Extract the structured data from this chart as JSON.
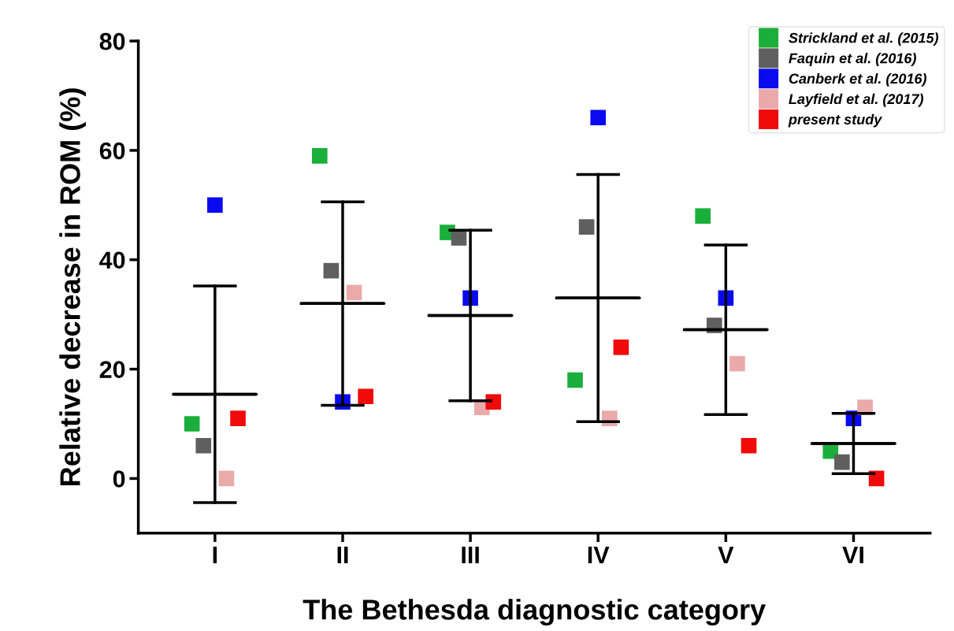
{
  "chart_data": {
    "type": "scatter",
    "xlabel": "The Bethesda diagnostic category",
    "ylabel": "Relative decrease in ROM (%)",
    "categories": [
      "I",
      "II",
      "III",
      "IV",
      "V",
      "VI"
    ],
    "ylim": [
      -10,
      80
    ],
    "yticks": [
      0,
      20,
      40,
      60,
      80
    ],
    "grid": false,
    "legend": "top right",
    "marker": "square",
    "series": [
      {
        "name": "Strickland et al. (2015)",
        "color": "#1aaf3a",
        "values": [
          10,
          59,
          45,
          18,
          48,
          5
        ]
      },
      {
        "name": "Faquin et al. (2016)",
        "color": "#5f5f5f",
        "values": [
          6,
          38,
          44,
          46,
          28,
          3
        ]
      },
      {
        "name": "Canberk et al. (2016)",
        "color": "#0a0af0",
        "values": [
          50,
          14,
          33,
          66,
          33,
          11
        ]
      },
      {
        "name": "Layfield et al. (2017)",
        "color": "#eaaaaa",
        "values": [
          0,
          34,
          13,
          11,
          21,
          13
        ]
      },
      {
        "name": "present study",
        "color": "#f00a0a",
        "values": [
          11,
          15,
          14,
          24,
          6,
          0
        ]
      },
      {
        "type": "box",
        "color": "#000000",
        "boxes": [
          {
            "low": -4.4,
            "q1": 15.4,
            "median": 15.4,
            "q3": 15.4,
            "high": 35.2
          },
          {
            "low": 13.4,
            "q1": 32.0,
            "median": 32.0,
            "q3": 32.0,
            "high": 50.6
          },
          {
            "low": 14.2,
            "q1": 29.8,
            "median": 29.8,
            "q3": 29.8,
            "high": 45.4
          },
          {
            "low": 10.4,
            "q1": 33.0,
            "median": 33.0,
            "q3": 33.0,
            "high": 55.6
          },
          {
            "low": 11.7,
            "q1": 27.2,
            "median": 27.2,
            "q3": 27.2,
            "high": 42.7
          },
          {
            "low": 0.9,
            "q1": 6.4,
            "median": 6.4,
            "q3": 6.4,
            "high": 11.9
          }
        ]
      }
    ]
  }
}
